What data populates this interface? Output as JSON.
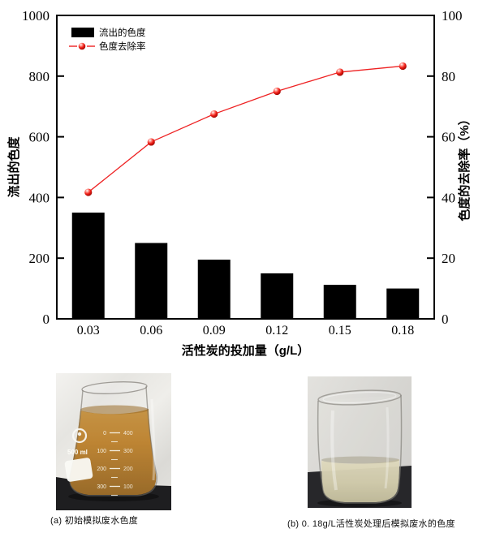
{
  "figure": {
    "background": "#ffffff",
    "accent_red": "#ee2223",
    "bar_black": "#000000"
  },
  "chart_data": {
    "type": "bar+line",
    "categories": [
      "0.03",
      "0.06",
      "0.09",
      "0.12",
      "0.15",
      "0.18"
    ],
    "series": [
      {
        "name": "流出的色度",
        "type": "bar",
        "axis": "left",
        "color": "#000000",
        "values": [
          350,
          250,
          195,
          150,
          112,
          100
        ]
      },
      {
        "name": "色度去除率",
        "type": "line",
        "axis": "right",
        "color": "#ee2223",
        "marker": "red-sphere",
        "values": [
          41.7,
          58.3,
          67.5,
          75.0,
          81.3,
          83.3
        ]
      }
    ],
    "xlabel": "活性炭的投加量（g/L）",
    "ylabel_left": "流出的色度",
    "ylabel_right": "色度的去除率（%）",
    "ylim_left": [
      0,
      1000
    ],
    "ylim_right": [
      0,
      100
    ],
    "yticks_left": [
      "0",
      "200",
      "400",
      "600",
      "800",
      "1000"
    ],
    "yticks_right": [
      "0",
      "20",
      "40",
      "60",
      "80",
      "100"
    ],
    "legend": {
      "position": "top-left",
      "items": [
        "流出的色度",
        "色度去除率"
      ]
    },
    "grid": false,
    "frame": true
  },
  "photos": {
    "left": {
      "caption": "(a) 初始模拟废水色度",
      "beaker_volume_label": "500 ml",
      "graduations": [
        [
          "0",
          "400"
        ],
        [
          "100",
          "300"
        ],
        [
          "200",
          "200"
        ],
        [
          "300",
          "100"
        ]
      ],
      "liquid_color": "#b8791f"
    },
    "right": {
      "caption": "(b) 0. 18g/L活性炭处理后模拟废水的色度",
      "liquid_color": "#d2cba6"
    }
  }
}
